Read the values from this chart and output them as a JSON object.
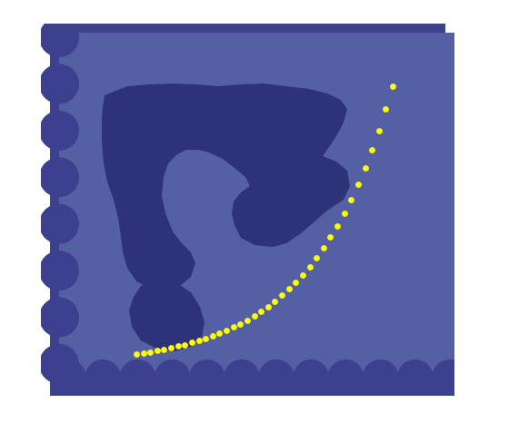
{
  "bg_color": "#5560a4",
  "outer_color": "#3d3f8f",
  "blob_color": "#2e3278",
  "dot_color": "#ffff00",
  "figsize": [
    5.6,
    4.66
  ],
  "dpi": 100,
  "background": "white"
}
